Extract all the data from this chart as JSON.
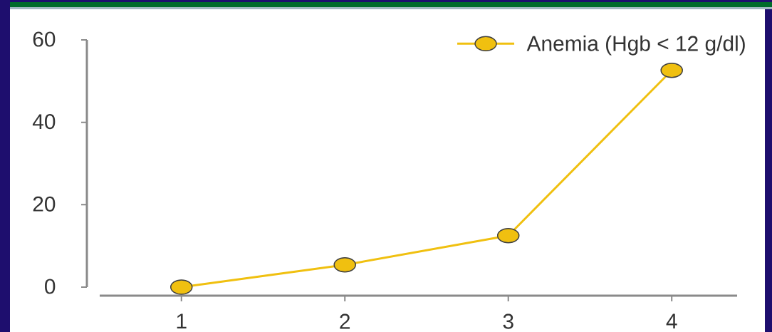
{
  "chart_data": {
    "type": "line",
    "categories": [
      "1",
      "2",
      "3",
      "4"
    ],
    "series": [
      {
        "name": "Anemia (Hgb < 12 g/dl)",
        "color": "#f0c010",
        "values": [
          0,
          5.4,
          12.5,
          52.6
        ]
      }
    ],
    "ylim": [
      0,
      60
    ],
    "yticks": [
      0,
      20,
      40,
      60
    ],
    "legend": "top right",
    "marker": "circle",
    "line_style": "solid"
  }
}
